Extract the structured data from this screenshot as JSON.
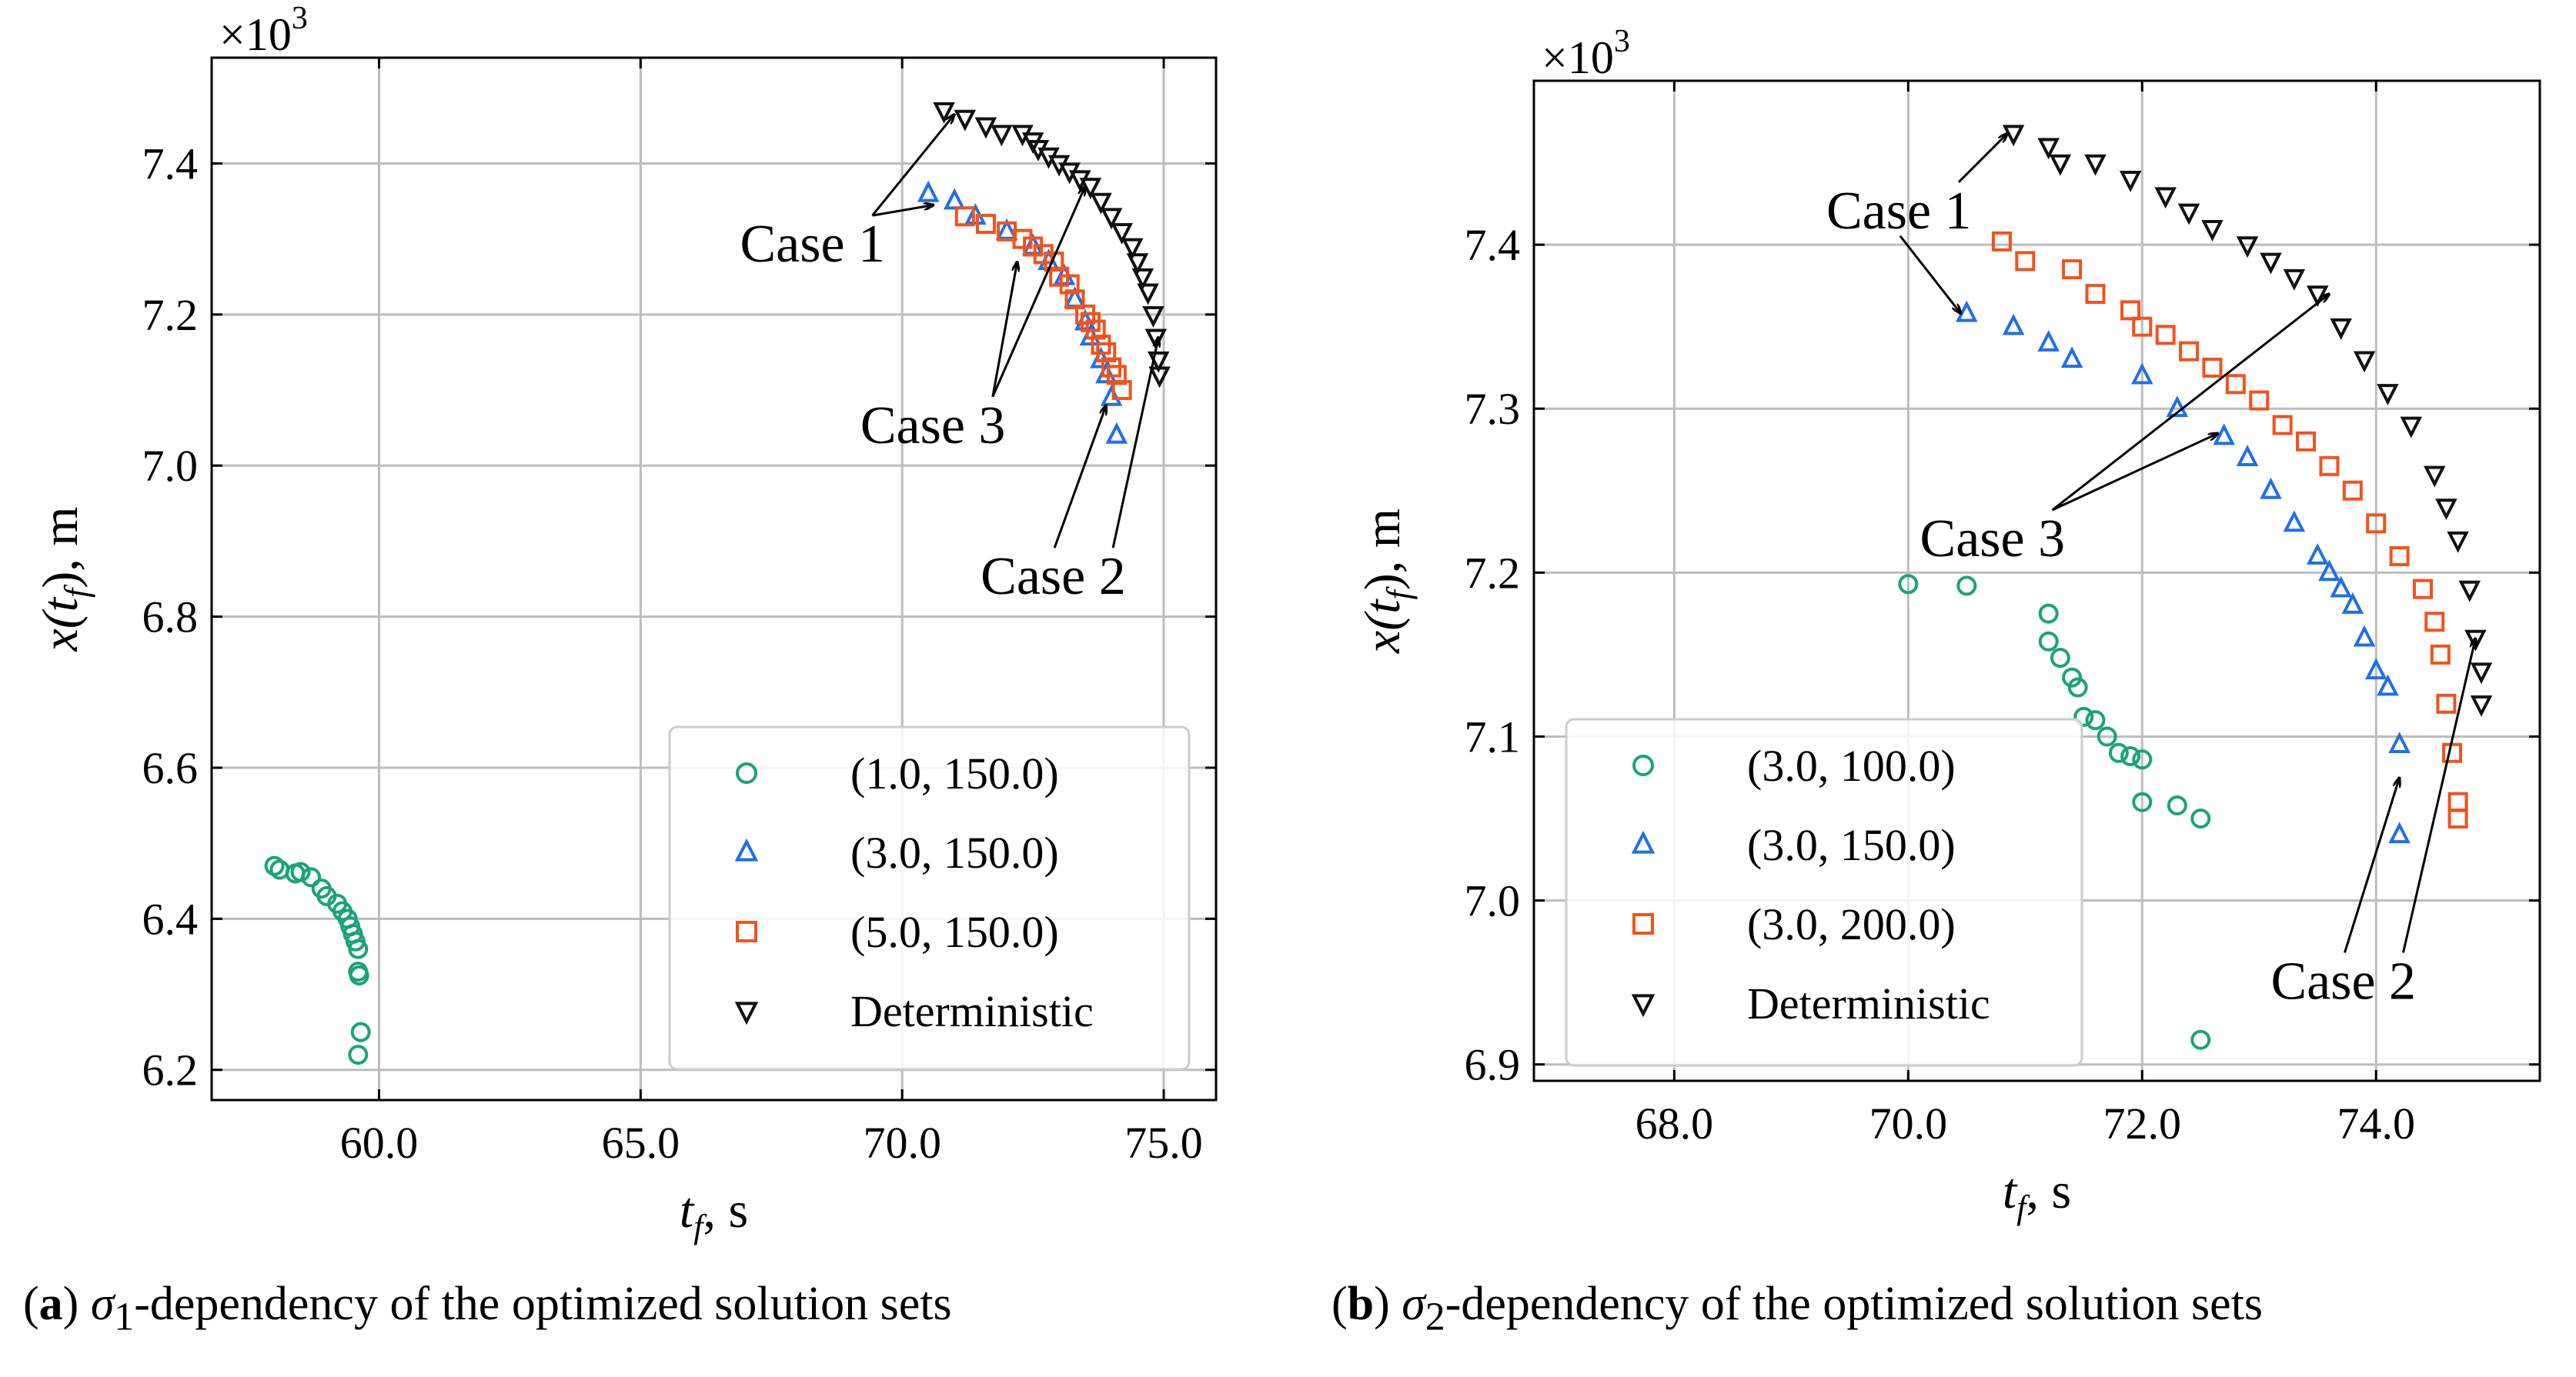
{
  "chart_data": [
    {
      "panel": "a",
      "type": "scatter",
      "xlabel_var": "t",
      "xlabel_sub": "f",
      "xlabel_unit": ", s",
      "ylabel_var": "x(t",
      "ylabel_sub": "f",
      "ylabel_unit": "), m",
      "y_multiplier": "×10",
      "y_multiplier_exp": "3",
      "xlim": [
        56.8,
        76.0
      ],
      "ylim": [
        6.16,
        7.54
      ],
      "xticks": [
        60.0,
        65.0,
        70.0,
        75.0
      ],
      "xtick_labels": [
        "60.0",
        "65.0",
        "70.0",
        "75.0"
      ],
      "yticks": [
        6.2,
        6.4,
        6.6,
        6.8,
        7.0,
        7.2,
        7.4
      ],
      "ytick_labels": [
        "6.2",
        "6.4",
        "6.6",
        "6.8",
        "7.0",
        "7.2",
        "7.4"
      ],
      "grid": true,
      "legend_position": "bottom-right",
      "series": [
        {
          "name": "(1.0, 150.0)",
          "marker": "circle",
          "color": "#1aa37a",
          "x": [
            58.0,
            58.1,
            58.4,
            58.5,
            58.7,
            58.9,
            59.0,
            59.2,
            59.3,
            59.4,
            59.45,
            59.5,
            59.55,
            59.6,
            59.6,
            59.62,
            59.65,
            59.6
          ],
          "y": [
            6.47,
            6.465,
            6.46,
            6.462,
            6.455,
            6.44,
            6.43,
            6.42,
            6.41,
            6.4,
            6.39,
            6.38,
            6.37,
            6.36,
            6.33,
            6.325,
            6.25,
            6.22
          ]
        },
        {
          "name": "(3.0, 150.0)",
          "marker": "triangle-up",
          "color": "#1f6fe8",
          "x": [
            70.5,
            71.0,
            71.4,
            72.0,
            72.5,
            72.8,
            73.1,
            73.3,
            73.5,
            73.6,
            73.8,
            73.9,
            74.0,
            74.1
          ],
          "y": [
            7.36,
            7.35,
            7.33,
            7.31,
            7.29,
            7.27,
            7.25,
            7.22,
            7.19,
            7.17,
            7.14,
            7.12,
            7.09,
            7.04
          ]
        },
        {
          "name": "(5.0, 150.0)",
          "marker": "square",
          "color": "#f0531d",
          "x": [
            71.2,
            71.6,
            72.0,
            72.3,
            72.5,
            72.7,
            72.9,
            73.0,
            73.2,
            73.3,
            73.5,
            73.6,
            73.7,
            73.8,
            73.9,
            74.0,
            74.1,
            74.2
          ],
          "y": [
            7.33,
            7.32,
            7.31,
            7.3,
            7.29,
            7.28,
            7.27,
            7.25,
            7.24,
            7.22,
            7.2,
            7.19,
            7.18,
            7.16,
            7.15,
            7.13,
            7.12,
            7.1
          ]
        },
        {
          "name": "Deterministic",
          "marker": "triangle-down",
          "color": "#111111",
          "x": [
            70.8,
            71.2,
            71.6,
            71.9,
            72.3,
            72.5,
            72.6,
            72.8,
            73.0,
            73.2,
            73.4,
            73.6,
            73.8,
            74.0,
            74.2,
            74.4,
            74.5,
            74.6,
            74.7,
            74.8,
            74.85,
            74.9,
            74.92
          ],
          "y": [
            7.47,
            7.46,
            7.45,
            7.44,
            7.44,
            7.43,
            7.42,
            7.41,
            7.4,
            7.39,
            7.38,
            7.37,
            7.35,
            7.33,
            7.31,
            7.29,
            7.27,
            7.25,
            7.23,
            7.2,
            7.17,
            7.14,
            7.12
          ]
        }
      ],
      "annotations": [
        {
          "text": "Case 1",
          "text_at": [
            66.9,
            7.27
          ],
          "arrows_to": [
            [
              71.0,
              7.465
            ],
            [
              70.6,
              7.345
            ]
          ]
        },
        {
          "text": "Case 3",
          "text_at": [
            69.2,
            7.03
          ],
          "arrows_to": [
            [
              72.2,
              7.27
            ],
            [
              73.5,
              7.37
            ]
          ]
        },
        {
          "text": "Case 2",
          "text_at": [
            71.5,
            6.83
          ],
          "arrows_to": [
            [
              73.9,
              7.08
            ],
            [
              74.9,
              7.17
            ]
          ]
        }
      ]
    },
    {
      "panel": "b",
      "type": "scatter",
      "xlabel_var": "t",
      "xlabel_sub": "f",
      "xlabel_unit": ", s",
      "ylabel_var": "x(t",
      "ylabel_sub": "f",
      "ylabel_unit": "), m",
      "y_multiplier": "×10",
      "y_multiplier_exp": "3",
      "xlim": [
        66.8,
        75.4
      ],
      "ylim": [
        6.89,
        7.5
      ],
      "xticks": [
        68.0,
        70.0,
        72.0,
        74.0
      ],
      "xtick_labels": [
        "68.0",
        "70.0",
        "72.0",
        "74.0"
      ],
      "yticks": [
        6.9,
        7.0,
        7.1,
        7.2,
        7.3,
        7.4
      ],
      "ytick_labels": [
        "6.9",
        "7.0",
        "7.1",
        "7.2",
        "7.3",
        "7.4"
      ],
      "grid": true,
      "legend_position": "bottom-left",
      "series": [
        {
          "name": "(3.0, 100.0)",
          "marker": "circle",
          "color": "#1aa37a",
          "x": [
            70.0,
            70.5,
            71.2,
            71.2,
            71.3,
            71.4,
            71.45,
            71.5,
            71.6,
            71.7,
            71.8,
            71.9,
            72.0,
            72.0,
            72.3,
            72.5,
            72.5
          ],
          "y": [
            7.193,
            7.192,
            7.175,
            7.158,
            7.148,
            7.136,
            7.13,
            7.112,
            7.11,
            7.1,
            7.09,
            7.088,
            7.086,
            7.06,
            7.058,
            7.05,
            6.915
          ]
        },
        {
          "name": "(3.0, 150.0)",
          "marker": "triangle-up",
          "color": "#1f6fe8",
          "x": [
            70.5,
            70.9,
            71.2,
            71.4,
            72.0,
            72.3,
            72.7,
            72.9,
            73.1,
            73.3,
            73.5,
            73.6,
            73.7,
            73.8,
            73.9,
            74.0,
            74.1,
            74.2,
            74.2
          ],
          "y": [
            7.358,
            7.35,
            7.34,
            7.33,
            7.32,
            7.3,
            7.283,
            7.27,
            7.25,
            7.23,
            7.21,
            7.2,
            7.19,
            7.18,
            7.16,
            7.14,
            7.13,
            7.095,
            7.04
          ]
        },
        {
          "name": "(3.0, 200.0)",
          "marker": "square",
          "color": "#f0531d",
          "x": [
            70.8,
            71.0,
            71.4,
            71.6,
            71.9,
            72.0,
            72.2,
            72.4,
            72.6,
            72.8,
            73.0,
            73.2,
            73.4,
            73.6,
            73.8,
            74.0,
            74.2,
            74.4,
            74.5,
            74.55,
            74.6,
            74.65,
            74.7,
            74.7
          ],
          "y": [
            7.402,
            7.39,
            7.385,
            7.37,
            7.36,
            7.35,
            7.345,
            7.335,
            7.325,
            7.315,
            7.305,
            7.29,
            7.28,
            7.265,
            7.25,
            7.23,
            7.21,
            7.19,
            7.17,
            7.15,
            7.12,
            7.09,
            7.06,
            7.05
          ]
        },
        {
          "name": "Deterministic",
          "marker": "triangle-down",
          "color": "#111111",
          "x": [
            70.9,
            71.2,
            71.3,
            71.6,
            71.9,
            72.2,
            72.4,
            72.6,
            72.9,
            73.1,
            73.3,
            73.5,
            73.7,
            73.9,
            74.1,
            74.3,
            74.5,
            74.6,
            74.7,
            74.8,
            74.85,
            74.9,
            74.9
          ],
          "y": [
            7.468,
            7.46,
            7.45,
            7.45,
            7.44,
            7.43,
            7.42,
            7.41,
            7.4,
            7.39,
            7.38,
            7.37,
            7.35,
            7.33,
            7.31,
            7.29,
            7.26,
            7.24,
            7.22,
            7.19,
            7.16,
            7.14,
            7.12
          ]
        }
      ],
      "annotations": [
        {
          "text": "Case 1",
          "text_at": [
            69.3,
            7.41
          ],
          "arrows_to": [
            [
              70.85,
              7.468
            ],
            [
              70.45,
              7.358
            ]
          ]
        },
        {
          "text": "Case 3",
          "text_at": [
            70.1,
            7.21
          ],
          "arrows_to": [
            [
              72.65,
              7.285
            ],
            [
              73.6,
              7.37
            ]
          ]
        },
        {
          "text": "Case 2",
          "text_at": [
            73.1,
            6.94
          ],
          "arrows_to": [
            [
              74.2,
              7.075
            ],
            [
              74.85,
              7.16
            ]
          ]
        }
      ]
    }
  ],
  "captions": {
    "a": {
      "label": "a",
      "sigma_sub": "1",
      "rest": "-dependency of the optimized solution sets"
    },
    "b": {
      "label": "b",
      "sigma_sub": "2",
      "rest": "-dependency of the optimized solution sets"
    }
  }
}
